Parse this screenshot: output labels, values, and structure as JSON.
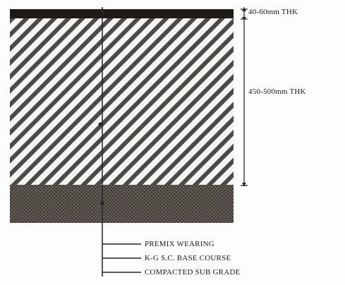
{
  "dimensions": {
    "top_layer_thickness": "40-60mm THK",
    "base_layer_thickness": "450-500mm THK"
  },
  "legend": [
    "PREMIX WEARING",
    "K-G S.C. BASE COURSE",
    "COMPACTED SUB GRADE"
  ],
  "colors": {
    "wearing_course": "#1e1a16",
    "base_hatch_stroke": "#4a4a4a",
    "base_background": "#f4f4f0",
    "subgrade": "#3b3631",
    "lines": "#222222"
  }
}
